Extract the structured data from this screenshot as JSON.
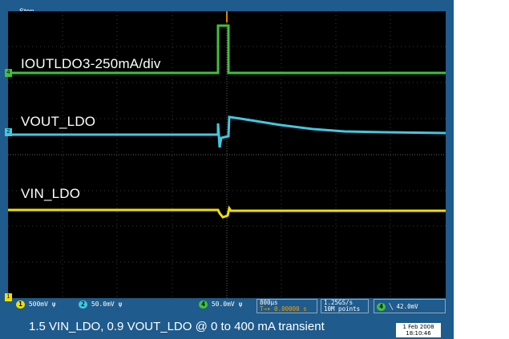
{
  "window": {
    "stop_label": "Stop"
  },
  "traces": {
    "iout_label": "IOUTLDO3-250mA/div",
    "vout_label": "VOUT_LDO",
    "vin_label": "VIN_LDO"
  },
  "ground_markers": {
    "ch4": "4",
    "ch2": "2",
    "ch1": "1"
  },
  "status": {
    "ch1_badge": "1",
    "ch1_scale": "500mV",
    "ch1_glyph": "ψ",
    "ch2_badge": "2",
    "ch2_scale": "50.0mV",
    "ch2_glyph": "ψ",
    "ch4_badge": "4",
    "ch4_scale": "50.0mV",
    "ch4_glyph": "ψ",
    "timebase": "800μs",
    "trigger_pos": "T→▾ 0.00000 s",
    "sample_rate": "1.25GS/s",
    "record_length": "10M points",
    "trig_badge": "4",
    "trig_slope": "╲",
    "trig_level": "42.0mV"
  },
  "caption": "1.5 VIN_LDO, 0.9 VOUT_LDO @ 0 to 400 mA transient",
  "date": {
    "day": "1 Feb 2008",
    "time": "18:10:46"
  },
  "colors": {
    "ch1": "#f0e000",
    "ch2": "#40c8e0",
    "ch4": "#40c040",
    "frame": "#1f5b8c"
  }
}
